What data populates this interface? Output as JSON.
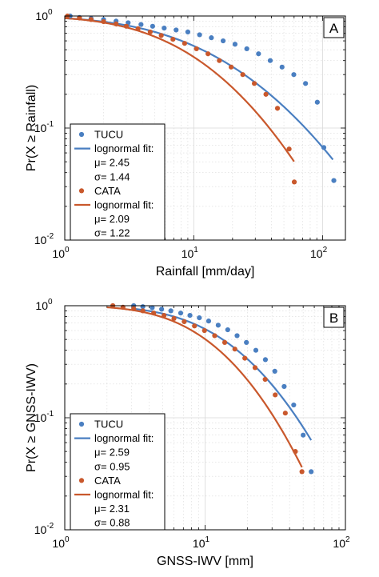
{
  "colors": {
    "tucu": "#4a7fc1",
    "cata": "#c9582c"
  },
  "chart_data": [
    {
      "type": "scatter",
      "panel_label": "A",
      "xlabel": "Rainfall [mm/day]",
      "ylabel": "Pr(X ≥ Rainfall)",
      "xscale": "log",
      "yscale": "log",
      "xlim": [
        1,
        150
      ],
      "ylim": [
        0.01,
        1
      ],
      "x_ticks": [
        {
          "base": "10",
          "exp": "0",
          "value": 1
        },
        {
          "base": "10",
          "exp": "1",
          "value": 10
        },
        {
          "base": "10",
          "exp": "2",
          "value": 100
        }
      ],
      "y_ticks": [
        {
          "base": "10",
          "exp": "0",
          "value": 1
        },
        {
          "base": "10",
          "exp": "-1",
          "value": 0.1
        },
        {
          "base": "10",
          "exp": "-2",
          "value": 0.01
        }
      ],
      "grid": true,
      "legend_position": "bottom-left",
      "series": [
        {
          "name": "TUCU",
          "kind": "points",
          "color_key": "tucu",
          "x": [
            1.1,
            1.3,
            1.6,
            2.0,
            2.5,
            3.1,
            3.9,
            4.8,
            5.9,
            7.3,
            9.0,
            11.1,
            13.7,
            16.9,
            20.9,
            25.8,
            31.8,
            39.2,
            48.4,
            59.7,
            73.6,
            90.8,
            102,
            122
          ],
          "y": [
            1.0,
            0.97,
            0.95,
            0.93,
            0.9,
            0.87,
            0.84,
            0.81,
            0.78,
            0.75,
            0.72,
            0.68,
            0.64,
            0.6,
            0.56,
            0.51,
            0.46,
            0.4,
            0.35,
            0.3,
            0.25,
            0.17,
            0.067,
            0.034
          ]
        },
        {
          "name": "lognormal fit:",
          "kind": "line",
          "color_key": "tucu",
          "mu": 2.45,
          "sigma": 1.44,
          "x_range": [
            1,
            120
          ]
        },
        {
          "name": "CATA",
          "kind": "points",
          "color_key": "cata",
          "x": [
            1.05,
            1.3,
            1.6,
            2.0,
            2.5,
            3.0,
            3.7,
            4.6,
            5.6,
            6.9,
            8.5,
            10.5,
            12.9,
            15.8,
            19.5,
            24.0,
            29.5,
            36.3,
            44.6,
            54.9,
            60.2
          ],
          "y": [
            1.0,
            0.96,
            0.93,
            0.89,
            0.85,
            0.81,
            0.77,
            0.72,
            0.67,
            0.62,
            0.57,
            0.51,
            0.46,
            0.4,
            0.35,
            0.3,
            0.25,
            0.2,
            0.15,
            0.065,
            0.033
          ]
        },
        {
          "name": "lognormal fit:",
          "kind": "line",
          "color_key": "cata",
          "mu": 2.09,
          "sigma": 1.22,
          "x_range": [
            1,
            60
          ]
        }
      ],
      "legend": [
        {
          "type": "dot",
          "color_key": "tucu",
          "text": "TUCU"
        },
        {
          "type": "line",
          "color_key": "tucu",
          "text": "lognormal fit:"
        },
        {
          "type": "text",
          "text": "μ= 2.45"
        },
        {
          "type": "text",
          "text": "σ= 1.44"
        },
        {
          "type": "dot",
          "color_key": "cata",
          "text": "CATA"
        },
        {
          "type": "line",
          "color_key": "cata",
          "text": "lognormal fit:"
        },
        {
          "type": "text",
          "text": "μ= 2.09"
        },
        {
          "type": "text",
          "text": "σ= 1.22"
        }
      ]
    },
    {
      "type": "scatter",
      "panel_label": "B",
      "xlabel": "GNSS-IWV [mm]",
      "ylabel": "Pr(X ≥ GNSS-IWV)",
      "xscale": "log",
      "yscale": "log",
      "xlim": [
        1,
        100
      ],
      "ylim": [
        0.01,
        1
      ],
      "x_ticks": [
        {
          "base": "10",
          "exp": "0",
          "value": 1
        },
        {
          "base": "10",
          "exp": "1",
          "value": 10
        },
        {
          "base": "10",
          "exp": "2",
          "value": 100
        }
      ],
      "y_ticks": [
        {
          "base": "10",
          "exp": "0",
          "value": 1
        },
        {
          "base": "10",
          "exp": "-1",
          "value": 0.1
        },
        {
          "base": "10",
          "exp": "-2",
          "value": 0.01
        }
      ],
      "grid": true,
      "legend_position": "bottom-left",
      "series": [
        {
          "name": "TUCU",
          "kind": "points",
          "color_key": "tucu",
          "x": [
            3.1,
            3.6,
            4.2,
            4.9,
            5.7,
            6.7,
            7.8,
            9.1,
            10.6,
            12.4,
            14.5,
            16.9,
            19.7,
            23.0,
            26.9,
            31.4,
            36.6,
            42.8,
            50.0,
            57.0
          ],
          "y": [
            1.0,
            0.98,
            0.96,
            0.93,
            0.9,
            0.86,
            0.82,
            0.78,
            0.73,
            0.67,
            0.61,
            0.54,
            0.47,
            0.4,
            0.33,
            0.26,
            0.19,
            0.13,
            0.07,
            0.033
          ]
        },
        {
          "name": "lognormal fit:",
          "kind": "line",
          "color_key": "tucu",
          "mu": 2.59,
          "sigma": 0.95,
          "x_range": [
            3,
            57
          ]
        },
        {
          "name": "CATA",
          "kind": "points",
          "color_key": "cata",
          "x": [
            2.2,
            2.6,
            3.1,
            3.6,
            4.3,
            5.1,
            6.0,
            7.1,
            8.4,
            9.9,
            11.7,
            13.8,
            16.3,
            19.2,
            22.7,
            26.8,
            31.6,
            37.3,
            44.0,
            49.0
          ],
          "y": [
            1.0,
            0.97,
            0.94,
            0.9,
            0.86,
            0.82,
            0.77,
            0.72,
            0.66,
            0.6,
            0.54,
            0.47,
            0.41,
            0.34,
            0.28,
            0.22,
            0.16,
            0.11,
            0.05,
            0.033
          ]
        },
        {
          "name": "lognormal fit:",
          "kind": "line",
          "color_key": "cata",
          "mu": 2.31,
          "sigma": 0.88,
          "x_range": [
            2,
            49
          ]
        }
      ],
      "legend": [
        {
          "type": "dot",
          "color_key": "tucu",
          "text": "TUCU"
        },
        {
          "type": "line",
          "color_key": "tucu",
          "text": "lognormal fit:"
        },
        {
          "type": "text",
          "text": "μ= 2.59"
        },
        {
          "type": "text",
          "text": "σ= 0.95"
        },
        {
          "type": "dot",
          "color_key": "cata",
          "text": "CATA"
        },
        {
          "type": "line",
          "color_key": "cata",
          "text": "lognormal fit:"
        },
        {
          "type": "text",
          "text": "μ= 2.31"
        },
        {
          "type": "text",
          "text": "σ= 0.88"
        }
      ]
    }
  ]
}
